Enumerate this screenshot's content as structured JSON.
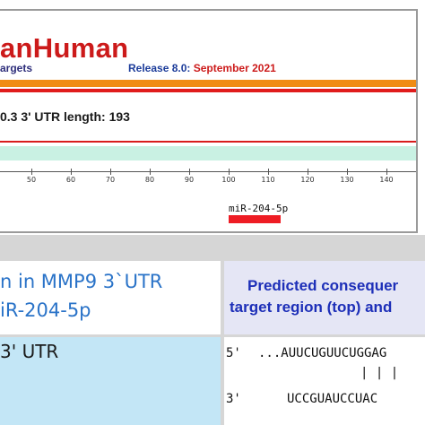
{
  "header": {
    "logo_text": "anHuman",
    "logo_subtext": "argets",
    "release_label": "Release 8.0:",
    "release_date": "September 2021"
  },
  "transcript": {
    "info_line": "0.3   3' UTR length: 193"
  },
  "ruler": {
    "ticks": [
      "50",
      "60",
      "70",
      "80",
      "90",
      "100",
      "110",
      "120",
      "130",
      "140"
    ]
  },
  "site": {
    "mirna_label": "miR-204-5p"
  },
  "table": {
    "left_header_line1": "n in MMP9 3`UTR",
    "left_header_line2": "iR-204-5p",
    "right_header_line1": "Predicted consequer",
    "right_header_line2": "target region (top) and",
    "left_body": "3' UTR",
    "seq_5prime_label": "5'",
    "seq_target": "...AUUCUGUUCUGGAG",
    "seq_pairs": "| | |",
    "seq_3prime_label": "3'",
    "seq_mirna": "UCCGUAUCCUAC"
  },
  "colors": {
    "logo_red": "#cc1a1a",
    "orange_bar": "#f08c14",
    "red_bar": "#e01c1c",
    "utr_track": "#c9f1e3",
    "site_red": "#ee1c24",
    "header_blue": "#1d2fb8",
    "left_header_blue": "#2a73c8",
    "left_body_bg": "#c3e6f6",
    "right_header_bg": "#e5e6f5"
  }
}
